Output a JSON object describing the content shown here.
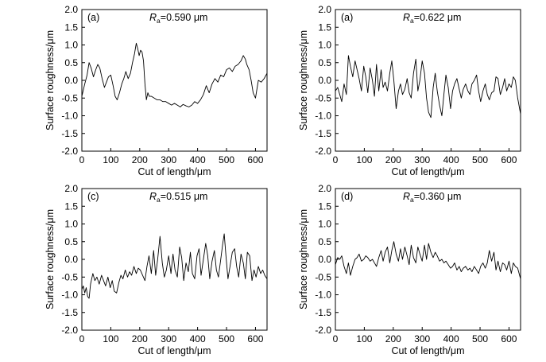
{
  "chart_data": [
    {
      "type": "line",
      "panel_label": "(a)",
      "annotation": {
        "symbol": "R",
        "subscript": "a",
        "value_text": "=0.590 μm"
      },
      "xlabel": "Cut of length/μm",
      "ylabel": "Surface roughness/μm",
      "xlim": [
        0,
        640
      ],
      "ylim": [
        -2.0,
        2.0
      ],
      "xticks": [
        0,
        100,
        200,
        300,
        400,
        500,
        600
      ],
      "yticks": [
        "-2.0",
        "-1.5",
        "-1.0",
        "-0.5",
        "0.0",
        "0.5",
        "1.0",
        "1.5",
        "2.0"
      ],
      "grid": false,
      "series": [
        {
          "x": [
            0,
            10,
            18,
            25,
            32,
            40,
            48,
            55,
            62,
            70,
            78,
            85,
            92,
            100,
            108,
            115,
            122,
            130,
            138,
            145,
            152,
            160,
            168,
            175,
            182,
            188,
            193,
            198,
            203,
            208,
            213,
            218,
            223,
            228,
            233,
            240,
            250,
            260,
            270,
            280,
            290,
            300,
            310,
            320,
            330,
            340,
            350,
            360,
            370,
            380,
            390,
            400,
            410,
            420,
            430,
            440,
            450,
            460,
            470,
            480,
            490,
            500,
            510,
            520,
            530,
            540,
            550,
            558,
            565,
            570,
            578,
            585,
            592,
            600,
            610,
            620,
            630,
            640
          ],
          "y": [
            -0.45,
            -0.1,
            0.15,
            0.5,
            0.35,
            0.1,
            0.3,
            0.45,
            0.35,
            0.05,
            -0.2,
            -0.05,
            0.1,
            0.15,
            -0.15,
            -0.45,
            -0.55,
            -0.35,
            -0.1,
            0.05,
            0.25,
            0.05,
            0.2,
            0.5,
            0.75,
            1.05,
            0.9,
            0.7,
            0.85,
            0.8,
            0.55,
            -0.1,
            -0.55,
            -0.35,
            -0.45,
            -0.45,
            -0.5,
            -0.55,
            -0.55,
            -0.6,
            -0.6,
            -0.65,
            -0.7,
            -0.65,
            -0.7,
            -0.75,
            -0.68,
            -0.72,
            -0.75,
            -0.7,
            -0.6,
            -0.65,
            -0.55,
            -0.4,
            -0.15,
            -0.35,
            -0.1,
            0.05,
            -0.05,
            0.15,
            0.1,
            0.3,
            0.35,
            0.25,
            0.4,
            0.45,
            0.55,
            0.7,
            0.6,
            0.45,
            0.3,
            0.0,
            -0.35,
            -0.5,
            0.0,
            -0.05,
            0.05,
            0.2
          ]
        }
      ]
    },
    {
      "type": "line",
      "panel_label": "(a)",
      "annotation": {
        "symbol": "R",
        "subscript": "a",
        "value_text": "=0.622 μm"
      },
      "xlabel": "Cut of length/μm",
      "ylabel": "Surface roughness/μm",
      "xlim": [
        0,
        640
      ],
      "ylim": [
        -2.0,
        2.0
      ],
      "xticks": [
        0,
        100,
        200,
        300,
        400,
        500,
        600
      ],
      "yticks": [
        "-2.0",
        "-1.5",
        "-1.0",
        "-0.5",
        "0.0",
        "0.5",
        "1.0",
        "1.5",
        "2.0"
      ],
      "grid": false,
      "series": [
        {
          "x": [
            0,
            8,
            15,
            22,
            30,
            38,
            45,
            52,
            60,
            68,
            75,
            82,
            90,
            98,
            105,
            112,
            120,
            128,
            135,
            142,
            150,
            158,
            165,
            172,
            180,
            188,
            195,
            202,
            210,
            218,
            225,
            232,
            240,
            248,
            255,
            262,
            270,
            278,
            285,
            292,
            300,
            308,
            315,
            322,
            330,
            338,
            345,
            352,
            360,
            368,
            375,
            382,
            390,
            398,
            405,
            412,
            420,
            428,
            435,
            442,
            450,
            458,
            465,
            472,
            480,
            488,
            495,
            502,
            510,
            518,
            525,
            532,
            540,
            548,
            555,
            562,
            570,
            578,
            585,
            592,
            600,
            608,
            615,
            622,
            630,
            640
          ],
          "y": [
            -0.3,
            -0.2,
            -0.4,
            -0.6,
            -0.1,
            -0.4,
            0.7,
            0.4,
            0.1,
            0.55,
            0.3,
            0.05,
            -0.3,
            0.4,
            0.1,
            -0.35,
            0.35,
            0.0,
            -0.45,
            0.45,
            -0.3,
            0.3,
            -0.2,
            -0.05,
            -0.3,
            0.2,
            0.55,
            0.0,
            -0.8,
            -0.3,
            -0.1,
            -0.4,
            -0.25,
            0.05,
            -0.35,
            -0.5,
            0.2,
            0.6,
            -0.3,
            0.0,
            0.55,
            0.2,
            -0.5,
            -0.9,
            -1.05,
            -0.2,
            0.2,
            -0.3,
            -0.7,
            -1.0,
            -0.4,
            0.15,
            -0.2,
            -0.8,
            -0.3,
            -0.1,
            0.05,
            -0.25,
            -0.5,
            -0.25,
            -0.1,
            -0.3,
            -0.4,
            -0.1,
            0.0,
            0.15,
            -0.3,
            -0.6,
            -0.3,
            -0.1,
            -0.4,
            -0.55,
            -0.35,
            -0.3,
            0.1,
            0.05,
            -0.4,
            -0.2,
            0.05,
            -0.3,
            -0.1,
            -0.2,
            0.1,
            0.0,
            -0.5,
            -0.95
          ]
        }
      ]
    },
    {
      "type": "line",
      "panel_label": "(c)",
      "annotation": {
        "symbol": "R",
        "subscript": "a",
        "value_text": "=0.515 μm"
      },
      "xlabel": "Cut of length/μm",
      "ylabel": "Surface roughness/μm",
      "xlim": [
        0,
        640
      ],
      "ylim": [
        -2.0,
        2.0
      ],
      "xticks": [
        0,
        100,
        200,
        300,
        400,
        500,
        600
      ],
      "yticks": [
        "-2.0",
        "-1.5",
        "-1.0",
        "-0.5",
        "0.0",
        "0.5",
        "1.0",
        "1.5",
        "2.0"
      ],
      "grid": false,
      "series": [
        {
          "x": [
            0,
            5,
            10,
            15,
            20,
            25,
            30,
            38,
            45,
            52,
            60,
            68,
            75,
            82,
            90,
            98,
            105,
            112,
            120,
            128,
            135,
            142,
            150,
            158,
            165,
            172,
            180,
            188,
            195,
            202,
            210,
            218,
            225,
            232,
            240,
            248,
            255,
            262,
            270,
            278,
            285,
            292,
            300,
            308,
            315,
            322,
            330,
            338,
            345,
            352,
            360,
            368,
            375,
            382,
            390,
            398,
            405,
            412,
            420,
            428,
            435,
            442,
            450,
            458,
            465,
            472,
            480,
            487,
            492,
            498,
            505,
            512,
            520,
            528,
            535,
            542,
            550,
            558,
            565,
            572,
            580,
            588,
            595,
            602,
            610,
            618,
            625,
            632,
            640
          ],
          "y": [
            -0.85,
            -0.75,
            -0.95,
            -0.8,
            -1.05,
            -1.1,
            -0.7,
            -0.4,
            -0.6,
            -0.5,
            -0.7,
            -0.45,
            -0.6,
            -0.75,
            -0.5,
            -0.8,
            -0.6,
            -0.9,
            -0.95,
            -0.65,
            -0.45,
            -0.55,
            -0.3,
            -0.5,
            -0.35,
            -0.45,
            -0.2,
            -0.4,
            -0.25,
            -0.3,
            -0.45,
            -0.6,
            -0.2,
            0.1,
            -0.4,
            0.25,
            -0.45,
            0.0,
            0.65,
            -0.1,
            -0.5,
            -0.3,
            0.1,
            -0.4,
            0.15,
            -0.3,
            -0.5,
            0.35,
            0.05,
            -0.6,
            -0.1,
            -0.35,
            0.2,
            -0.4,
            -0.55,
            0.1,
            0.3,
            -0.45,
            0.0,
            0.45,
            0.1,
            -0.55,
            -0.05,
            0.25,
            -0.3,
            -0.5,
            0.0,
            0.45,
            0.72,
            0.1,
            -0.55,
            -0.2,
            0.2,
            0.3,
            -0.2,
            -0.5,
            0.15,
            -0.1,
            -0.55,
            0.2,
            0.1,
            -0.6,
            -0.3,
            -0.5,
            -0.2,
            -0.4,
            -0.3,
            -0.45,
            -0.55
          ]
        }
      ]
    },
    {
      "type": "line",
      "panel_label": "(d)",
      "annotation": {
        "symbol": "R",
        "subscript": "a",
        "value_text": "=0.360 μm"
      },
      "xlabel": "Cut of length/μm",
      "ylabel": "Surface roughness/μm",
      "xlim": [
        0,
        640
      ],
      "ylim": [
        -2.0,
        2.0
      ],
      "xticks": [
        0,
        100,
        200,
        300,
        400,
        500,
        600
      ],
      "yticks": [
        "-2.0",
        "-1.5",
        "-1.0",
        "-0.5",
        "0.0",
        "0.5",
        "1.0",
        "1.5",
        "2.0"
      ],
      "grid": false,
      "series": [
        {
          "x": [
            0,
            8,
            15,
            22,
            30,
            38,
            45,
            52,
            60,
            68,
            75,
            82,
            90,
            98,
            105,
            112,
            120,
            128,
            135,
            142,
            150,
            158,
            165,
            172,
            180,
            188,
            195,
            202,
            210,
            218,
            225,
            232,
            240,
            248,
            255,
            262,
            270,
            278,
            285,
            292,
            300,
            308,
            315,
            322,
            330,
            338,
            345,
            352,
            360,
            368,
            375,
            382,
            390,
            398,
            405,
            412,
            420,
            428,
            435,
            442,
            450,
            458,
            465,
            472,
            480,
            488,
            495,
            502,
            510,
            518,
            525,
            532,
            540,
            548,
            555,
            562,
            570,
            578,
            585,
            592,
            600,
            608,
            615,
            622,
            630,
            640
          ],
          "y": [
            -0.15,
            0.05,
            0.0,
            0.1,
            -0.2,
            -0.4,
            -0.1,
            -0.45,
            -0.2,
            0.0,
            0.05,
            0.15,
            -0.05,
            0.0,
            0.1,
            0.05,
            -0.05,
            0.0,
            -0.1,
            -0.2,
            0.05,
            0.25,
            -0.05,
            0.2,
            0.35,
            -0.1,
            0.25,
            0.5,
            0.15,
            -0.05,
            0.3,
            0.0,
            0.35,
            0.1,
            -0.15,
            0.4,
            0.05,
            -0.1,
            0.35,
            0.15,
            -0.05,
            0.4,
            0.0,
            0.45,
            0.2,
            0.05,
            0.2,
            0.1,
            -0.05,
            0.0,
            -0.1,
            -0.05,
            -0.15,
            -0.25,
            -0.2,
            -0.1,
            -0.3,
            -0.2,
            -0.35,
            -0.25,
            -0.2,
            -0.3,
            -0.25,
            -0.35,
            -0.2,
            -0.3,
            -0.4,
            -0.2,
            -0.1,
            -0.25,
            -0.1,
            0.25,
            -0.05,
            0.2,
            -0.3,
            -0.05,
            -0.35,
            -0.1,
            -0.15,
            -0.3,
            -0.05,
            -0.4,
            -0.1,
            -0.2,
            -0.25,
            -0.55
          ]
        }
      ]
    }
  ]
}
